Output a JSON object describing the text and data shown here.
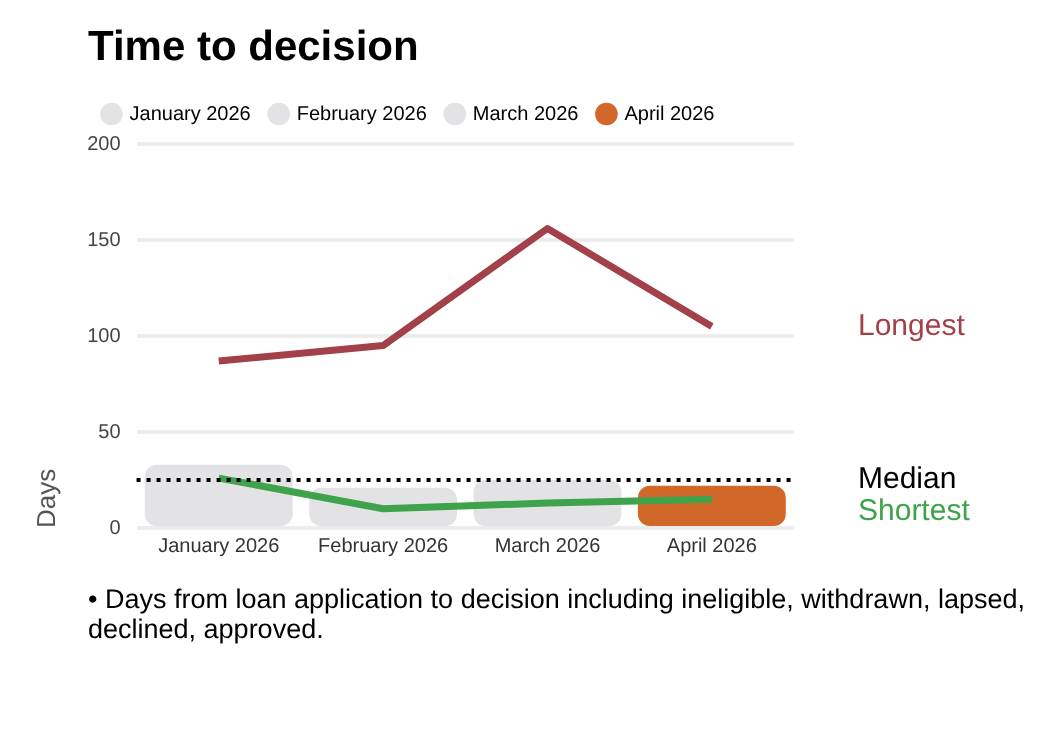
{
  "chart_data": {
    "type": "bar",
    "title": "Time to decision",
    "ylabel": "Days",
    "categories": [
      "January 2026",
      "February 2026",
      "March 2026",
      "April 2026"
    ],
    "series": [
      {
        "name": "January 2026",
        "color": "#e3e3e5",
        "values": [
          33,
          null,
          null,
          null
        ]
      },
      {
        "name": "February 2026",
        "color": "#e3e3e5",
        "values": [
          null,
          21,
          null,
          null
        ]
      },
      {
        "name": "March 2026",
        "color": "#e3e3e5",
        "values": [
          null,
          null,
          25,
          null
        ]
      },
      {
        "name": "April 2026",
        "color": "#d2672a",
        "values": [
          null,
          null,
          null,
          22
        ]
      },
      {
        "type": "line",
        "name": "Longest",
        "color": "#a2414a",
        "values": [
          87,
          95,
          156,
          105
        ]
      },
      {
        "type": "line",
        "name": "Shortest",
        "color": "#3ea34a",
        "values": [
          26,
          10,
          13,
          15
        ]
      }
    ],
    "ref_lines": [
      {
        "axis": "y",
        "value": 25,
        "label": "Median",
        "color": "#000000",
        "line_style": "dotted"
      }
    ],
    "ylim": [
      0,
      200
    ],
    "yticks": [
      0,
      50,
      100,
      150,
      200
    ],
    "grid": "y",
    "legend": "top",
    "annotations": [
      "• Days from loan application to decision including ineligible, withdrawn, lapsed, declined, approved."
    ]
  }
}
